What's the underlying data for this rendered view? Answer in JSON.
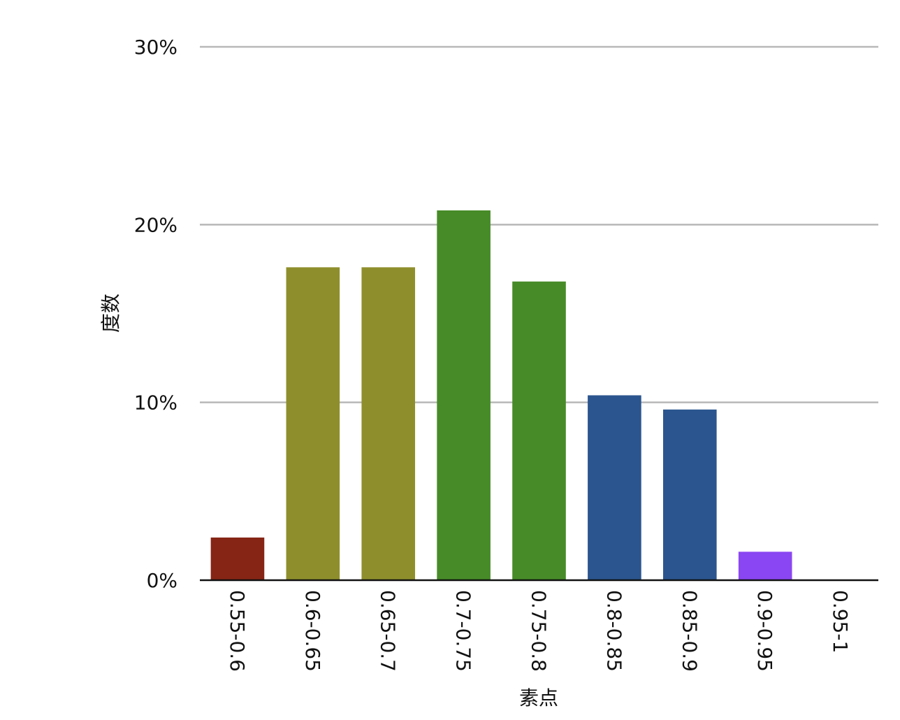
{
  "chart_data": {
    "type": "bar",
    "xlabel": "素点",
    "ylabel": "度数",
    "categories": [
      "0.55-0.6",
      "0.6-0.65",
      "0.65-0.7",
      "0.7-0.75",
      "0.75-0.8",
      "0.8-0.85",
      "0.85-0.9",
      "0.9-0.95",
      "0.95-1"
    ],
    "values": [
      2.4,
      17.6,
      17.6,
      20.8,
      16.8,
      10.4,
      9.6,
      1.6,
      0
    ],
    "value_unit": "%",
    "colors": [
      "#862515",
      "#8e8f2c",
      "#8e8f2c",
      "#478b28",
      "#478b28",
      "#2b558e",
      "#2b558e",
      "#8a46f2",
      "#8a46f2"
    ],
    "ylim": [
      0,
      30
    ],
    "yticks": [
      0,
      10,
      20,
      30
    ],
    "ytick_labels": [
      "0%",
      "10%",
      "20%",
      "30%"
    ],
    "grid": true,
    "legend": "none"
  }
}
